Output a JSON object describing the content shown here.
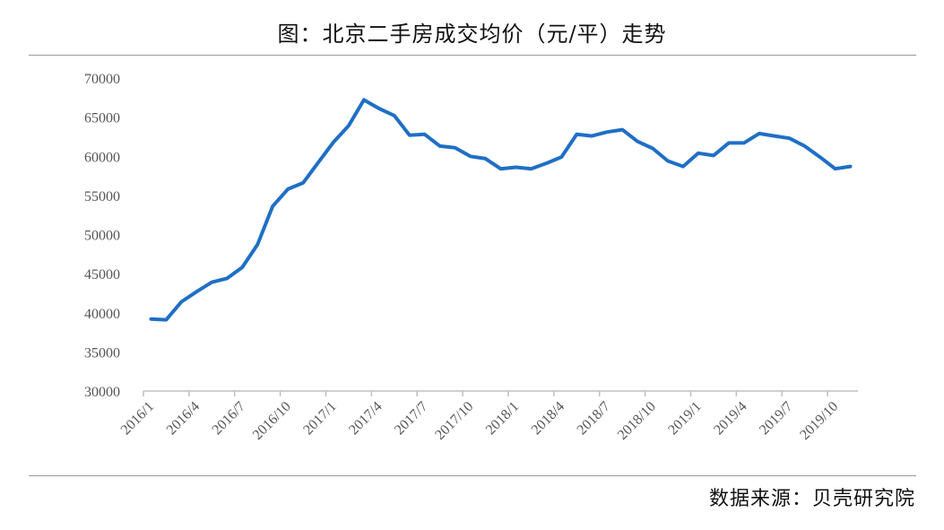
{
  "title": "图：北京二手房成交均价（元/平）走势",
  "source": "数据来源：贝壳研究院",
  "colors": {
    "line": "#1f6fc5",
    "axis": "#bfbfbf",
    "text": "#555555",
    "rule": "#9a9a9a"
  },
  "chart_data": {
    "type": "line",
    "title": "图：北京二手房成交均价（元/平）走势",
    "xlabel": "",
    "ylabel": "",
    "ylim": [
      30000,
      70000
    ],
    "yticks": [
      30000,
      35000,
      40000,
      45000,
      50000,
      55000,
      60000,
      65000,
      70000
    ],
    "ytick_labels": [
      "30000",
      "35000",
      "40000",
      "45000",
      "50000",
      "55000",
      "60000",
      "65000",
      "70000"
    ],
    "xtick_labels": [
      "2016/1",
      "2016/4",
      "2016/7",
      "2016/10",
      "2017/1",
      "2017/4",
      "2017/7",
      "2017/10",
      "2018/1",
      "2018/4",
      "2018/7",
      "2018/10",
      "2019/1",
      "2019/4",
      "2019/7",
      "2019/10"
    ],
    "grid": false,
    "legend": "none",
    "series": [
      {
        "x": [
          "2016/1",
          "2016/2",
          "2016/3",
          "2016/4",
          "2016/5",
          "2016/6",
          "2016/7",
          "2016/8",
          "2016/9",
          "2016/10",
          "2016/11",
          "2016/12",
          "2017/1",
          "2017/2",
          "2017/3",
          "2017/4",
          "2017/5",
          "2017/6",
          "2017/7",
          "2017/8",
          "2017/9",
          "2017/10",
          "2017/11",
          "2017/12",
          "2018/1",
          "2018/2",
          "2018/3",
          "2018/4",
          "2018/5",
          "2018/6",
          "2018/7",
          "2018/8",
          "2018/9",
          "2018/10",
          "2018/11",
          "2018/12",
          "2019/1",
          "2019/2",
          "2019/3",
          "2019/4",
          "2019/5",
          "2019/6",
          "2019/7",
          "2019/8",
          "2019/9",
          "2019/10",
          "2019/11"
        ],
        "values": [
          39200,
          39100,
          41400,
          42700,
          43900,
          44400,
          45800,
          48700,
          53600,
          55800,
          56600,
          59200,
          61800,
          63900,
          67200,
          66100,
          65200,
          62700,
          62800,
          61300,
          61100,
          60000,
          59700,
          58400,
          58600,
          58400,
          59100,
          59900,
          62800,
          62600,
          63100,
          63400,
          61900,
          61000,
          59400,
          58700,
          60400,
          60100,
          61700,
          61700,
          62900,
          62600,
          62300,
          61300,
          59900,
          58400,
          58700
        ]
      }
    ]
  }
}
